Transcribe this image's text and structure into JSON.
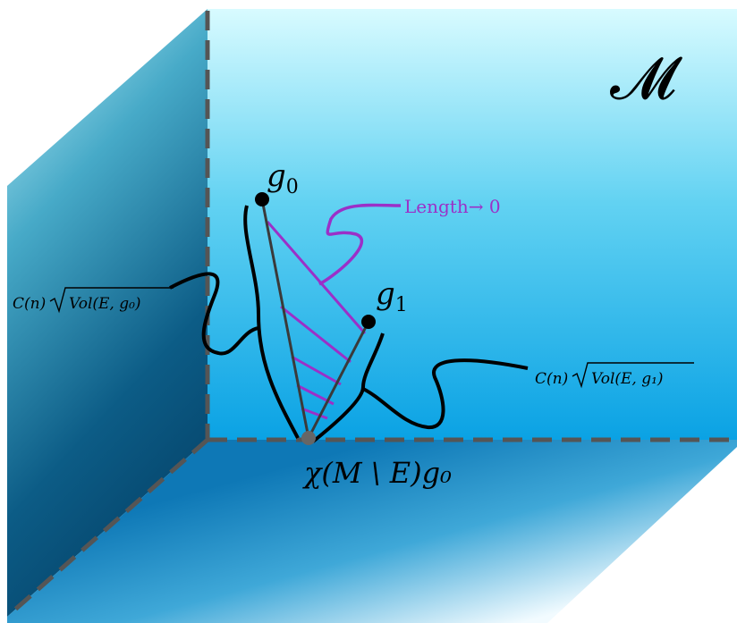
{
  "space_label": "𝓜",
  "points": {
    "g0": {
      "base": "g",
      "sub": "0"
    },
    "g1": {
      "base": "g",
      "sub": "1"
    },
    "vertex": "χ(M \\ E)g₀"
  },
  "annotations": {
    "length": "Length→ 0",
    "bound_g0": {
      "prefix": "C(n)",
      "radicand": "Vol(E, g₀)"
    },
    "bound_g1": {
      "prefix": "C(n)",
      "radicand": "Vol(E, g₁)"
    }
  },
  "colors": {
    "accent_purple": "#9b30c8",
    "line_dark": "#3a3a3a",
    "curve_black": "#000000",
    "dashed_edge": "#555555",
    "wall_light": "#bff2fb",
    "wall_mid": "#2ab6e8",
    "wall_dark": "#0a5a86"
  }
}
